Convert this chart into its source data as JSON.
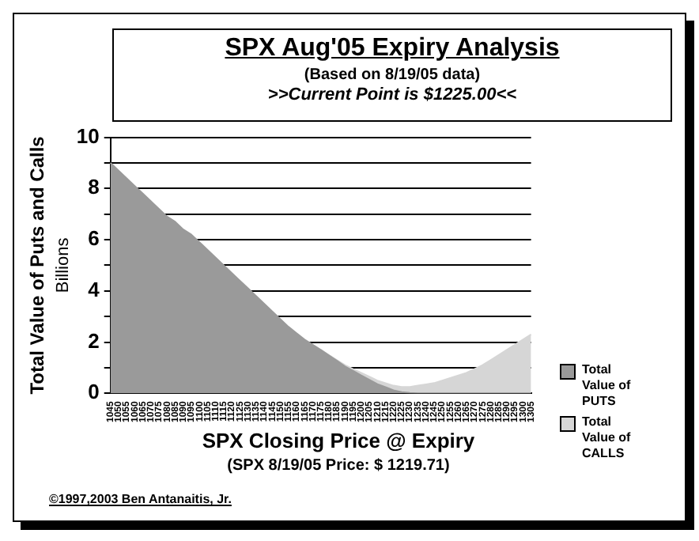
{
  "chart_data": {
    "type": "area",
    "title": "SPX Aug'05 Expiry Analysis",
    "subtitle": "(Based on 8/19/05 data)",
    "xlabel": "SPX Closing Price @ Expiry",
    "ylabel": "Total Value of Puts and Calls",
    "stacked": true,
    "grid": "y",
    "legend": "bottom right",
    "annotations": [
      "Billions",
      ">>Current Point is $1225.00<<",
      "(SPX 8/19/05 Price: $ 1219.71)",
      "©1997,2003 Ben Antanaitis, Jr."
    ],
    "categories": [
      "1045",
      "1050",
      "1055",
      "1060",
      "1065",
      "1070",
      "1075",
      "1080",
      "1085",
      "1090",
      "1095",
      "1100",
      "1105",
      "1110",
      "1115",
      "1120",
      "1125",
      "1130",
      "1135",
      "1140",
      "1145",
      "1150",
      "1155",
      "1160",
      "1165",
      "1170",
      "1175",
      "1180",
      "1185",
      "1190",
      "1195",
      "1200",
      "1205",
      "1210",
      "1215",
      "1220",
      "1225",
      "1230",
      "1235",
      "1240",
      "1245",
      "1250",
      "1255",
      "1260",
      "1265",
      "1270",
      "1275",
      "1280",
      "1285",
      "1290",
      "1295",
      "1300",
      "1305"
    ],
    "ylim": [
      0,
      10
    ],
    "yticks": [
      0,
      {
        "value": 1,
        "label": null
      },
      2,
      {
        "value": 3,
        "label": null
      },
      4,
      {
        "value": 5,
        "label": null
      },
      6,
      {
        "value": 7,
        "label": null
      },
      8,
      {
        "value": 9,
        "label": null
      },
      10
    ],
    "series": [
      {
        "name": "Total Value of PUTS",
        "color": "#9a9a9a",
        "values": [
          9.0,
          8.7,
          8.4,
          8.1,
          7.8,
          7.5,
          7.2,
          6.9,
          6.7,
          6.4,
          6.2,
          5.9,
          5.6,
          5.3,
          5.0,
          4.7,
          4.4,
          4.1,
          3.8,
          3.5,
          3.2,
          2.9,
          2.6,
          2.35,
          2.1,
          1.9,
          1.7,
          1.48,
          1.27,
          1.05,
          0.88,
          0.7,
          0.53,
          0.36,
          0.24,
          0.12,
          0.05,
          0.02,
          0,
          0,
          0,
          0,
          0,
          0,
          0,
          0,
          0,
          0,
          0,
          0,
          0,
          0,
          0
        ]
      },
      {
        "name": "Total Value of CALLS",
        "color": "#d6d6d6",
        "values": [
          null,
          null,
          null,
          null,
          null,
          null,
          null,
          null,
          null,
          null,
          null,
          null,
          null,
          null,
          null,
          null,
          null,
          null,
          null,
          null,
          null,
          null,
          null,
          null,
          null,
          null,
          0,
          0.02,
          0.03,
          0.05,
          0.07,
          0.1,
          0.12,
          0.14,
          0.16,
          0.18,
          0.2,
          0.23,
          0.3,
          0.35,
          0.4,
          0.5,
          0.6,
          0.7,
          0.8,
          0.95,
          1.1,
          1.3,
          1.5,
          1.7,
          1.9,
          2.1,
          2.3
        ]
      }
    ]
  }
}
